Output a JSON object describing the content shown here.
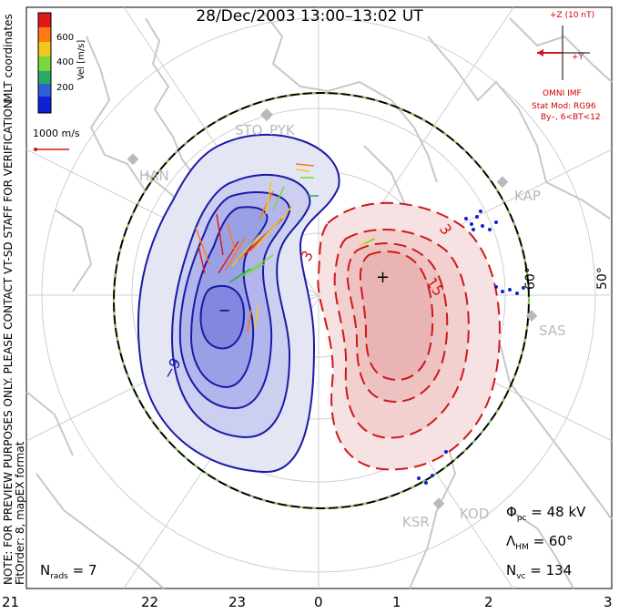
{
  "title": "28/Dec/2003 13:00–13:02 UT",
  "mlt_labels": [
    "21",
    "22",
    "23",
    "0",
    "1",
    "2",
    "3"
  ],
  "colorbar": {
    "ticks": [
      "600",
      "400",
      "200"
    ],
    "label": "Vel [m/s]",
    "side_label": "MLT coordinates",
    "colors": [
      "#e01818",
      "#ff7a10",
      "#f2c81e",
      "#7ad83a",
      "#2aa86a",
      "#3060d8",
      "#1020d8"
    ]
  },
  "scale_vector": "1000 m/s",
  "imf": {
    "z": "+Z (10 nT)",
    "y": "+Y",
    "source": "OMNI IMF",
    "model": "Stat Mod: RG96",
    "condition": "By–, 6<BT<12"
  },
  "stations": [
    "STO",
    "PYK",
    "HAN",
    "KAP",
    "SAS",
    "KSR",
    "KOD"
  ],
  "contour_labels": {
    "neg_outer": "−9",
    "neg_center": "−",
    "pos_inner": "15",
    "pos_mid": "3",
    "pos_outer": "3",
    "pos_center": "+"
  },
  "lat_labels": {
    "lat60": "60°",
    "lat50": "50°"
  },
  "stats": {
    "phi_sym": "Φ",
    "phi_sub": "pc",
    "phi_val": " = 48 kV",
    "lam_sym": "Λ",
    "lam_sub": "HM",
    "lam_val": " = 60°",
    "nvc_sym": "N",
    "nvc_sub": "vc",
    "nvc_val": " = 134",
    "nrads_sym": "N",
    "nrads_sub": "rads",
    "nrads_val": " = 7"
  },
  "note": [
    "NOTE: FOR PREVIEW PURPOSES ONLY. PLEASE CONTACT VT-SD STAFF FOR VERIFICATION.",
    "FitOrder: 8, mapEX format"
  ],
  "style": {
    "negative": "#1a1aa6",
    "positive": "#d01818",
    "coast": "#c8c8c8",
    "boundary": "#000000",
    "hmb_dash": "#88cc55"
  }
}
